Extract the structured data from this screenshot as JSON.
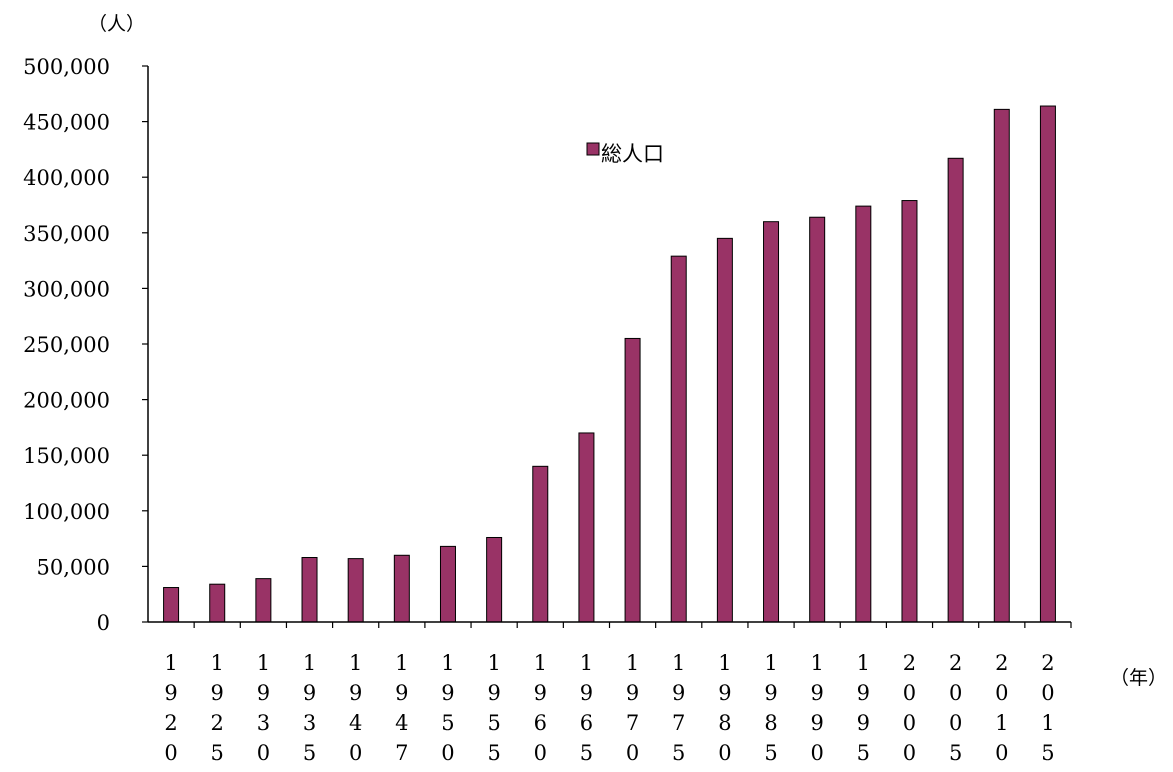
{
  "chart_data": {
    "type": "bar",
    "y_unit": "（人）",
    "x_unit": "（年）",
    "categories": [
      "1920",
      "1925",
      "1930",
      "1935",
      "1940",
      "1947",
      "1950",
      "1955",
      "1960",
      "1965",
      "1970",
      "1975",
      "1980",
      "1985",
      "1990",
      "1995",
      "2000",
      "2005",
      "2010",
      "2015"
    ],
    "series": [
      {
        "name": "総人口",
        "color": "#993366",
        "values": [
          31000,
          34000,
          39000,
          58000,
          57000,
          60000,
          68000,
          76000,
          140000,
          170000,
          255000,
          329000,
          345000,
          360000,
          364000,
          374000,
          379000,
          417000,
          461000,
          464000
        ]
      }
    ],
    "ylim": [
      0,
      500000
    ],
    "y_ticks": [
      "0",
      "50,000",
      "100,000",
      "150,000",
      "200,000",
      "250,000",
      "300,000",
      "350,000",
      "400,000",
      "450,000",
      "500,000"
    ],
    "legend_position": "top-center",
    "grid": false
  }
}
